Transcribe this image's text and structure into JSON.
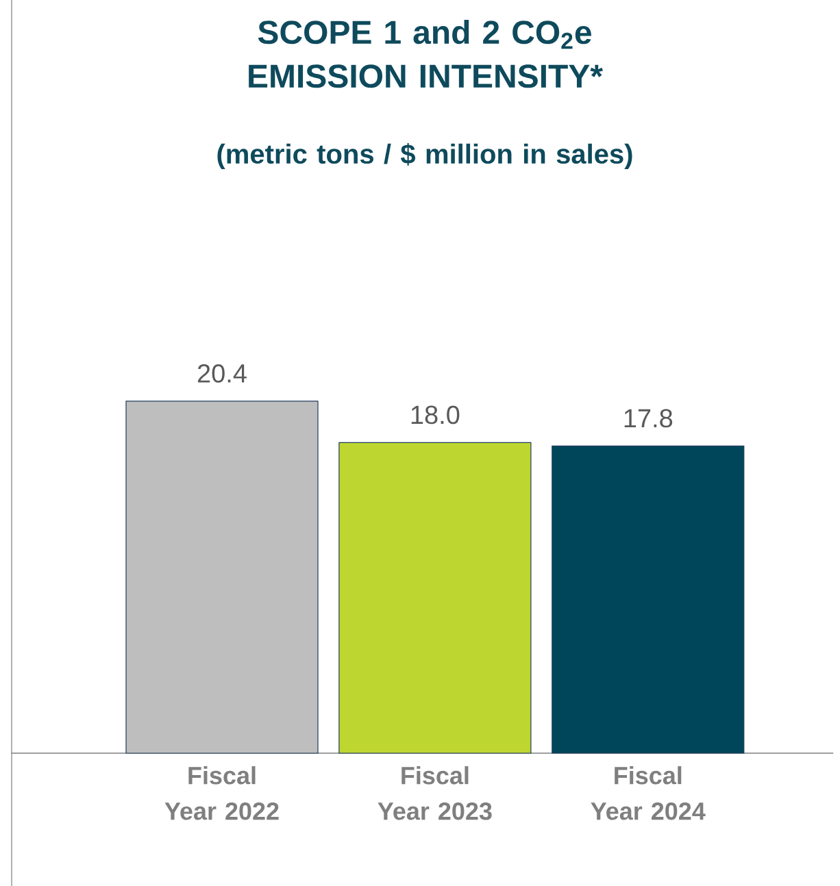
{
  "chart_data": {
    "type": "bar",
    "title": "SCOPE 1 and 2 CO$_{2}$e EMISSION INTENSITY*",
    "subtitle": "(metric tons / $ million in sales)",
    "categories": [
      "Fiscal Year 2022",
      "Fiscal Year 2023",
      "Fiscal Year 2024"
    ],
    "values": [
      20.4,
      18.0,
      17.8
    ],
    "colors": [
      "#bebebe",
      "#bed630",
      "#00465a"
    ],
    "value_labels": [
      "20.4",
      "18.0",
      "17.8"
    ],
    "tick_labels": "x"
  }
}
